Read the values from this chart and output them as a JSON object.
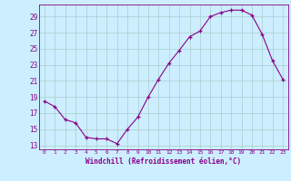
{
  "x": [
    0,
    1,
    2,
    3,
    4,
    5,
    6,
    7,
    8,
    9,
    10,
    11,
    12,
    13,
    14,
    15,
    16,
    17,
    18,
    19,
    20,
    21,
    22,
    23
  ],
  "y": [
    18.5,
    17.8,
    16.2,
    15.8,
    14.0,
    13.8,
    13.8,
    13.2,
    15.0,
    16.5,
    19.0,
    21.2,
    23.2,
    24.8,
    26.5,
    27.2,
    29.0,
    29.5,
    29.8,
    29.8,
    29.2,
    26.8,
    23.5,
    21.2
  ],
  "line_color": "#880088",
  "marker_color": "#880088",
  "bg_color": "#cceeff",
  "grid_color": "#aacccc",
  "xlabel": "Windchill (Refroidissement éolien,°C)",
  "yticks": [
    13,
    15,
    17,
    19,
    21,
    23,
    25,
    27,
    29
  ],
  "xticks": [
    0,
    1,
    2,
    3,
    4,
    5,
    6,
    7,
    8,
    9,
    10,
    11,
    12,
    13,
    14,
    15,
    16,
    17,
    18,
    19,
    20,
    21,
    22,
    23
  ],
  "ylim": [
    12.5,
    30.5
  ],
  "xlim": [
    -0.5,
    23.5
  ]
}
